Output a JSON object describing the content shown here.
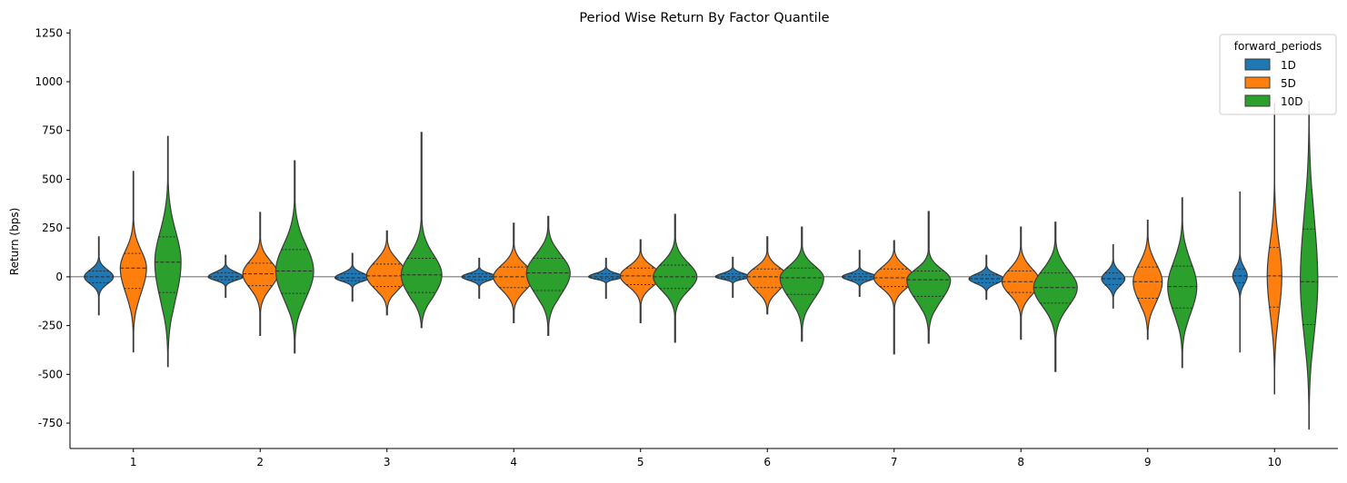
{
  "chart_data": {
    "type": "violin",
    "title": "Period Wise Return By Factor Quantile",
    "xlabel": "",
    "ylabel": "Return (bps)",
    "categories": [
      "1",
      "2",
      "3",
      "4",
      "5",
      "6",
      "7",
      "8",
      "9",
      "10"
    ],
    "ylim": [
      -880,
      1270
    ],
    "yticks": [
      -750,
      -500,
      -250,
      0,
      250,
      500,
      750,
      1000,
      1250
    ],
    "zero_line": true,
    "legend": {
      "title": "forward_periods",
      "position": "top-right",
      "items": [
        "1D",
        "5D",
        "10D"
      ]
    },
    "series": [
      {
        "name": "1D",
        "color": "#1f77b4",
        "violins": [
          {
            "min": -195,
            "q1": -30,
            "median": 0,
            "q3": 30,
            "max": 205,
            "halfwidth": 10
          },
          {
            "min": -105,
            "q1": -15,
            "median": 0,
            "q3": 20,
            "max": 110,
            "halfwidth": 12
          },
          {
            "min": -125,
            "q1": -20,
            "median": -5,
            "q3": 15,
            "max": 120,
            "halfwidth": 12
          },
          {
            "min": -110,
            "q1": -15,
            "median": 0,
            "q3": 15,
            "max": 95,
            "halfwidth": 12
          },
          {
            "min": -110,
            "q1": -10,
            "median": 0,
            "q3": 15,
            "max": 95,
            "halfwidth": 12
          },
          {
            "min": -105,
            "q1": -10,
            "median": 0,
            "q3": 15,
            "max": 100,
            "halfwidth": 12
          },
          {
            "min": -100,
            "q1": -15,
            "median": 0,
            "q3": 15,
            "max": 135,
            "halfwidth": 12
          },
          {
            "min": -115,
            "q1": -30,
            "median": -10,
            "q3": 10,
            "max": 110,
            "halfwidth": 12
          },
          {
            "min": -160,
            "q1": -40,
            "median": -10,
            "q3": 20,
            "max": 165,
            "halfwidth": 8
          },
          {
            "min": -385,
            "q1": -30,
            "median": 5,
            "q3": 40,
            "max": 435,
            "halfwidth": 5
          }
        ]
      },
      {
        "name": "5D",
        "color": "#ff7f0e",
        "violins": [
          {
            "min": -385,
            "q1": -60,
            "median": 45,
            "q3": 120,
            "max": 540,
            "halfwidth": 9
          },
          {
            "min": -300,
            "q1": -45,
            "median": 15,
            "q3": 70,
            "max": 330,
            "halfwidth": 12
          },
          {
            "min": -195,
            "q1": -50,
            "median": 5,
            "q3": 65,
            "max": 235,
            "halfwidth": 14
          },
          {
            "min": -235,
            "q1": -55,
            "median": 0,
            "q3": 50,
            "max": 275,
            "halfwidth": 14
          },
          {
            "min": -235,
            "q1": -40,
            "median": 5,
            "q3": 45,
            "max": 190,
            "halfwidth": 14
          },
          {
            "min": -190,
            "q1": -55,
            "median": 0,
            "q3": 40,
            "max": 205,
            "halfwidth": 14
          },
          {
            "min": -395,
            "q1": -50,
            "median": -5,
            "q3": 40,
            "max": 185,
            "halfwidth": 14
          },
          {
            "min": -320,
            "q1": -80,
            "median": -25,
            "q3": 30,
            "max": 255,
            "halfwidth": 13
          },
          {
            "min": -320,
            "q1": -110,
            "median": -25,
            "q3": 50,
            "max": 290,
            "halfwidth": 10
          },
          {
            "min": -600,
            "q1": -155,
            "median": 5,
            "q3": 150,
            "max": 890,
            "halfwidth": 5
          }
        ]
      },
      {
        "name": "10D",
        "color": "#2ca02c",
        "violins": [
          {
            "min": -460,
            "q1": -80,
            "median": 75,
            "q3": 205,
            "max": 720,
            "halfwidth": 9
          },
          {
            "min": -390,
            "q1": -85,
            "median": 30,
            "q3": 140,
            "max": 595,
            "halfwidth": 13
          },
          {
            "min": -260,
            "q1": -80,
            "median": 10,
            "q3": 95,
            "max": 740,
            "halfwidth": 14
          },
          {
            "min": -300,
            "q1": -70,
            "median": 20,
            "q3": 95,
            "max": 310,
            "halfwidth": 15
          },
          {
            "min": -335,
            "q1": -60,
            "median": 0,
            "q3": 60,
            "max": 320,
            "halfwidth": 15
          },
          {
            "min": -330,
            "q1": -90,
            "median": -5,
            "q3": 45,
            "max": 255,
            "halfwidth": 15
          },
          {
            "min": -340,
            "q1": -100,
            "median": -15,
            "q3": 30,
            "max": 335,
            "halfwidth": 15
          },
          {
            "min": -485,
            "q1": -135,
            "median": -55,
            "q3": 20,
            "max": 280,
            "halfwidth": 15
          },
          {
            "min": -465,
            "q1": -160,
            "median": -50,
            "q3": 55,
            "max": 405,
            "halfwidth": 10
          },
          {
            "min": -780,
            "q1": -245,
            "median": -25,
            "q3": 245,
            "max": 900,
            "halfwidth": 6
          }
        ]
      }
    ]
  }
}
